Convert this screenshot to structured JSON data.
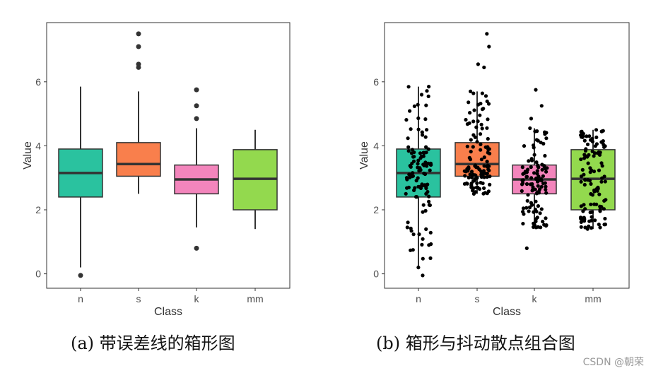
{
  "captions": [
    "(a)  带误差线的箱形图",
    "(b)  箱形与抖动散点组合图"
  ],
  "watermark": "CSDN @朝荣",
  "chart_data": [
    {
      "type": "box",
      "xlabel": "Class",
      "ylabel": "Value",
      "ylim": [
        -0.45,
        7.85
      ],
      "yticks": [
        0,
        2,
        4,
        6
      ],
      "categories": [
        "n",
        "s",
        "k",
        "mm"
      ],
      "colors": {
        "n": "#2ac29f",
        "s": "#f97f4c",
        "k": "#f385bc",
        "mm": "#93d94e"
      },
      "boxes": [
        {
          "cat": "n",
          "q1": 2.4,
          "median": 3.15,
          "q3": 3.9,
          "whisker_low": 0.2,
          "whisker_high": 5.85,
          "outliers": [
            -0.05
          ]
        },
        {
          "cat": "s",
          "q1": 3.05,
          "median": 3.43,
          "q3": 4.1,
          "whisker_low": 2.5,
          "whisker_high": 5.7,
          "outliers": [
            6.45,
            6.55,
            7.1,
            7.5
          ]
        },
        {
          "cat": "k",
          "q1": 2.5,
          "median": 2.95,
          "q3": 3.4,
          "whisker_low": 1.45,
          "whisker_high": 4.55,
          "outliers": [
            0.8,
            4.85,
            5.25,
            5.75
          ]
        },
        {
          "cat": "mm",
          "q1": 2.0,
          "median": 2.97,
          "q3": 3.88,
          "whisker_low": 1.4,
          "whisker_high": 4.5,
          "outliers": []
        }
      ],
      "jitter_points": false
    },
    {
      "type": "box",
      "xlabel": "Class",
      "ylabel": "Value",
      "ylim": [
        -0.45,
        7.85
      ],
      "yticks": [
        0,
        2,
        4,
        6
      ],
      "categories": [
        "n",
        "s",
        "k",
        "mm"
      ],
      "colors": {
        "n": "#2ac29f",
        "s": "#f97f4c",
        "k": "#f385bc",
        "mm": "#93d94e"
      },
      "boxes": [
        {
          "cat": "n",
          "q1": 2.4,
          "median": 3.15,
          "q3": 3.9,
          "whisker_low": 0.2,
          "whisker_high": 5.85,
          "outliers": [
            -0.05
          ]
        },
        {
          "cat": "s",
          "q1": 3.05,
          "median": 3.43,
          "q3": 4.1,
          "whisker_low": 2.5,
          "whisker_high": 5.7,
          "outliers": [
            6.45,
            6.55,
            7.1,
            7.5
          ]
        },
        {
          "cat": "k",
          "q1": 2.5,
          "median": 2.95,
          "q3": 3.4,
          "whisker_low": 1.45,
          "whisker_high": 4.55,
          "outliers": [
            0.8,
            4.85,
            5.25,
            5.75
          ]
        },
        {
          "cat": "mm",
          "q1": 2.0,
          "median": 2.97,
          "q3": 3.88,
          "whisker_low": 1.4,
          "whisker_high": 4.5,
          "outliers": []
        }
      ],
      "jitter_points": true
    }
  ]
}
